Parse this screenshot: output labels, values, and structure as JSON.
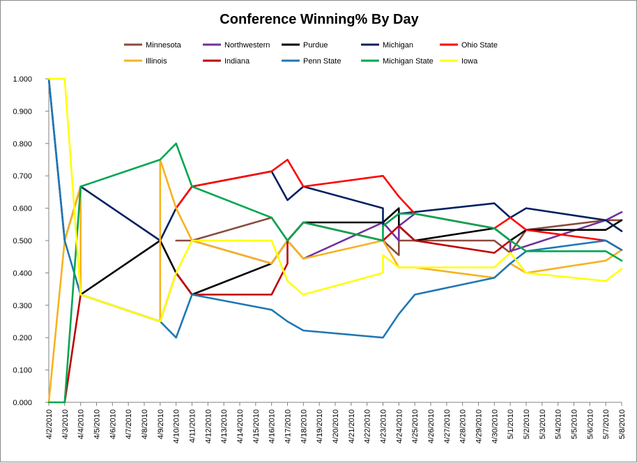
{
  "chart_data": {
    "type": "line",
    "title": "Conference Winning% By Day",
    "xlabel": "",
    "ylabel": "",
    "ylim": [
      0,
      1
    ],
    "y_ticks": [
      "0.000",
      "0.100",
      "0.200",
      "0.300",
      "0.400",
      "0.500",
      "0.600",
      "0.700",
      "0.800",
      "0.900",
      "1.000"
    ],
    "categories": [
      "4/2/2010",
      "4/3/2010",
      "4/4/2010",
      "4/5/2010",
      "4/6/2010",
      "4/7/2010",
      "4/8/2010",
      "4/9/2010",
      "4/10/2010",
      "4/11/2010",
      "4/12/2010",
      "4/13/2010",
      "4/14/2010",
      "4/15/2010",
      "4/16/2010",
      "4/17/2010",
      "4/18/2010",
      "4/19/2010",
      "4/20/2010",
      "4/21/2010",
      "4/22/2010",
      "4/23/2010",
      "4/24/2010",
      "4/25/2010",
      "4/26/2010",
      "4/27/2010",
      "4/28/2010",
      "4/29/2010",
      "4/30/2010",
      "5/1/2010",
      "5/2/2010",
      "5/3/2010",
      "5/4/2010",
      "5/5/2010",
      "5/6/2010",
      "5/7/2010",
      "5/8/2010"
    ],
    "grid": "none",
    "legend": "top",
    "series": [
      {
        "name": "Minnesota",
        "color": "#8B4A3C",
        "points": [
          [
            8.0,
            0.5
          ],
          [
            9.0,
            0.5
          ],
          [
            14.0,
            0.571
          ],
          [
            15.0,
            0.5
          ],
          [
            16.0,
            0.556
          ],
          [
            21.0,
            0.5
          ],
          [
            21.0,
            0.5
          ],
          [
            22.0,
            0.455
          ],
          [
            22.0,
            0.5
          ],
          [
            23.0,
            0.5
          ],
          [
            28.0,
            0.5
          ],
          [
            29.0,
            0.462
          ],
          [
            30.0,
            0.533
          ],
          [
            35.0,
            0.563
          ],
          [
            36.0,
            0.563
          ]
        ]
      },
      {
        "name": "Northwestern",
        "color": "#7030A0",
        "points": [
          [
            9.0,
            0.5
          ],
          [
            14.0,
            0.429
          ],
          [
            15.0,
            0.5
          ],
          [
            16.0,
            0.444
          ],
          [
            21.0,
            0.556
          ],
          [
            22.0,
            0.5
          ],
          [
            22.0,
            0.545
          ],
          [
            23.0,
            0.583
          ],
          [
            28.0,
            0.538
          ],
          [
            29.0,
            0.5
          ],
          [
            29.0,
            0.467
          ],
          [
            35.0,
            0.563
          ],
          [
            36.0,
            0.588
          ]
        ]
      },
      {
        "name": "Purdue",
        "color": "#000000",
        "points": [
          [
            2.0,
            0.333
          ],
          [
            7.0,
            0.5
          ],
          [
            8.0,
            0.4
          ],
          [
            9.0,
            0.333
          ],
          [
            14.0,
            0.429
          ],
          [
            15.0,
            0.5
          ],
          [
            16.0,
            0.556
          ],
          [
            21.0,
            0.556
          ],
          [
            22.0,
            0.6
          ],
          [
            22.0,
            0.545
          ],
          [
            23.0,
            0.5
          ],
          [
            28.0,
            0.538
          ],
          [
            29.0,
            0.5
          ],
          [
            30.0,
            0.533
          ],
          [
            35.0,
            0.533
          ],
          [
            36.0,
            0.563
          ]
        ]
      },
      {
        "name": "Michigan",
        "color": "#002060",
        "points": [
          [
            0.0,
            1.0
          ],
          [
            1.0,
            0.5
          ],
          [
            2.0,
            0.667
          ],
          [
            7.0,
            0.5
          ],
          [
            8.0,
            0.6
          ],
          [
            9.0,
            0.667
          ],
          [
            14.0,
            0.714
          ],
          [
            15.0,
            0.625
          ],
          [
            16.0,
            0.667
          ],
          [
            21.0,
            0.6
          ],
          [
            21.0,
            0.545
          ],
          [
            22.0,
            0.583
          ],
          [
            28.0,
            0.615
          ],
          [
            29.0,
            0.571
          ],
          [
            30.0,
            0.6
          ],
          [
            35.0,
            0.563
          ],
          [
            36.0,
            0.529
          ]
        ]
      },
      {
        "name": "Ohio State",
        "color": "#FF0000",
        "points": [
          [
            8.0,
            0.6
          ],
          [
            9.0,
            0.667
          ],
          [
            14.0,
            0.714
          ],
          [
            15.0,
            0.75
          ],
          [
            16.0,
            0.667
          ],
          [
            21.0,
            0.7
          ],
          [
            22.0,
            0.636
          ],
          [
            23.0,
            0.583
          ],
          [
            28.0,
            0.538
          ],
          [
            29.0,
            0.571
          ],
          [
            30.0,
            0.533
          ],
          [
            35.0,
            0.5
          ],
          [
            36.0,
            0.471
          ]
        ]
      },
      {
        "name": "Illinois",
        "color": "#F7B21E",
        "points": [
          [
            0.0,
            0.0
          ],
          [
            1.0,
            0.5
          ],
          [
            2.0,
            0.667
          ],
          [
            2.0,
            0.333
          ],
          [
            7.0,
            0.25
          ],
          [
            7.0,
            0.75
          ],
          [
            8.0,
            0.6
          ],
          [
            9.0,
            0.5
          ],
          [
            14.0,
            0.429
          ],
          [
            15.0,
            0.5
          ],
          [
            16.0,
            0.444
          ],
          [
            21.0,
            0.5
          ],
          [
            22.0,
            0.417
          ],
          [
            23.0,
            0.417
          ],
          [
            28.0,
            0.385
          ],
          [
            29.0,
            0.429
          ],
          [
            30.0,
            0.4
          ],
          [
            35.0,
            0.438
          ],
          [
            36.0,
            0.471
          ]
        ]
      },
      {
        "name": "Indiana",
        "color": "#C00000",
        "points": [
          [
            1.0,
            0.0
          ],
          [
            2.0,
            0.333
          ],
          [
            7.0,
            0.25
          ],
          [
            8.0,
            0.4
          ],
          [
            9.0,
            0.333
          ],
          [
            14.0,
            0.333
          ],
          [
            15.0,
            0.429
          ],
          [
            15.0,
            0.5
          ],
          [
            16.0,
            0.556
          ],
          [
            21.0,
            0.5
          ],
          [
            22.0,
            0.545
          ],
          [
            23.0,
            0.5
          ],
          [
            28.0,
            0.462
          ],
          [
            29.0,
            0.5
          ]
        ]
      },
      {
        "name": "Penn State",
        "color": "#1F77B4",
        "points": [
          [
            0.0,
            1.0
          ],
          [
            1.0,
            0.5
          ],
          [
            2.0,
            0.333
          ],
          [
            7.0,
            0.25
          ],
          [
            8.0,
            0.2
          ],
          [
            9.0,
            0.333
          ],
          [
            14.0,
            0.286
          ],
          [
            15.0,
            0.25
          ],
          [
            16.0,
            0.222
          ],
          [
            21.0,
            0.2
          ],
          [
            22.0,
            0.273
          ],
          [
            23.0,
            0.333
          ],
          [
            28.0,
            0.385
          ],
          [
            29.0,
            0.429
          ],
          [
            30.0,
            0.467
          ],
          [
            35.0,
            0.5
          ],
          [
            36.0,
            0.471
          ]
        ]
      },
      {
        "name": "Michigan State",
        "color": "#00A651",
        "points": [
          [
            0.0,
            0.0
          ],
          [
            1.0,
            0.0
          ],
          [
            2.0,
            0.667
          ],
          [
            7.0,
            0.75
          ],
          [
            8.0,
            0.8
          ],
          [
            9.0,
            0.667
          ],
          [
            14.0,
            0.571
          ],
          [
            15.0,
            0.5
          ],
          [
            16.0,
            0.556
          ],
          [
            21.0,
            0.5
          ],
          [
            21.0,
            0.545
          ],
          [
            22.0,
            0.583
          ],
          [
            23.0,
            0.583
          ],
          [
            28.0,
            0.538
          ],
          [
            29.0,
            0.5
          ],
          [
            30.0,
            0.467
          ],
          [
            35.0,
            0.467
          ],
          [
            36.0,
            0.438
          ]
        ]
      },
      {
        "name": "Iowa",
        "color": "#FFFF00",
        "points": [
          [
            0.0,
            1.0
          ],
          [
            1.0,
            1.0
          ],
          [
            2.0,
            0.333
          ],
          [
            7.0,
            0.25
          ],
          [
            8.0,
            0.4
          ],
          [
            9.0,
            0.5
          ],
          [
            14.0,
            0.5
          ],
          [
            15.0,
            0.375
          ],
          [
            16.0,
            0.333
          ],
          [
            21.0,
            0.4
          ],
          [
            21.0,
            0.455
          ],
          [
            22.0,
            0.417
          ],
          [
            23.0,
            0.417
          ],
          [
            28.0,
            0.417
          ],
          [
            29.0,
            0.462
          ],
          [
            30.0,
            0.4
          ],
          [
            35.0,
            0.375
          ],
          [
            36.0,
            0.412
          ]
        ]
      }
    ]
  }
}
